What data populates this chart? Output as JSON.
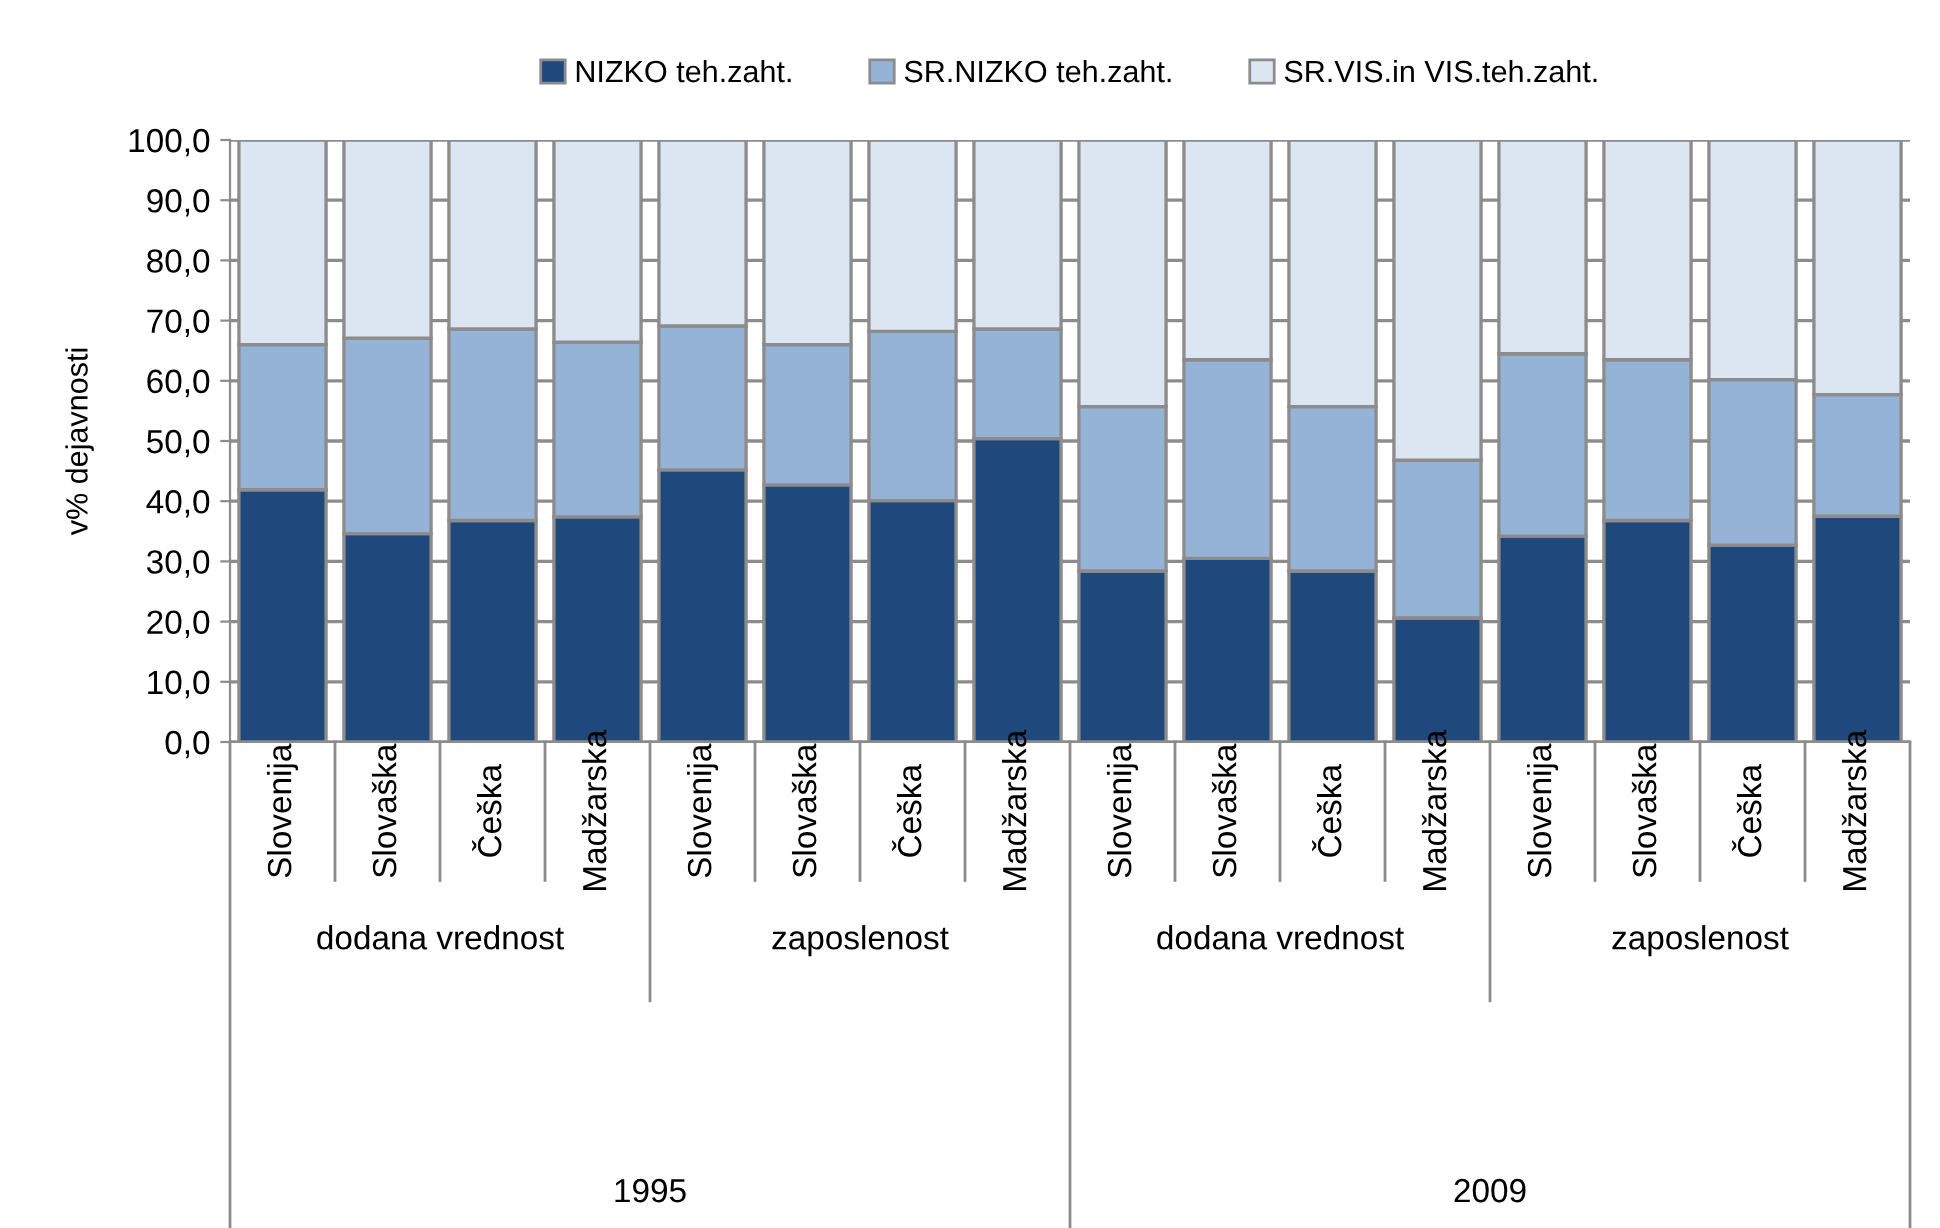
{
  "chart_data": {
    "type": "bar",
    "stacked": true,
    "ylabel": "v% dejavnosti",
    "categories": [
      "Slovenija",
      "Slovaška",
      "Češka",
      "Madžarska",
      "Slovenija",
      "Slovaška",
      "Češka",
      "Madžarska",
      "Slovenija",
      "Slovaška",
      "Češka",
      "Madžarska",
      "Slovenija",
      "Slovaška",
      "Češka",
      "Madžarska"
    ],
    "series": [
      {
        "name": "NIZKO teh.zaht.",
        "color": "#1f497d",
        "values": [
          41.9,
          34.6,
          36.8,
          37.4,
          45.2,
          42.7,
          40.1,
          50.4,
          28.4,
          30.5,
          28.4,
          20.6,
          34.2,
          36.8,
          32.7,
          37.5
        ]
      },
      {
        "name": "SR.NIZKO teh.zaht.",
        "color": "#95b3d7",
        "values": [
          24.1,
          32.5,
          31.8,
          29.0,
          23.9,
          23.3,
          28.1,
          18.2,
          27.3,
          33.0,
          27.3,
          26.2,
          30.3,
          26.7,
          27.5,
          20.2
        ]
      },
      {
        "name": "SR.VIS.in VIS.teh.zaht.",
        "color": "#dce6f2",
        "values": [
          34.0,
          32.9,
          31.4,
          33.6,
          30.9,
          34.0,
          31.8,
          31.4,
          44.3,
          36.5,
          44.3,
          53.2,
          35.5,
          36.5,
          39.8,
          42.3
        ]
      }
    ],
    "ylim": [
      0,
      100
    ],
    "yticks": [
      {
        "value": 0,
        "label": "0,0"
      },
      {
        "value": 10,
        "label": "10,0"
      },
      {
        "value": 20,
        "label": "20,0"
      },
      {
        "value": 30,
        "label": "30,0"
      },
      {
        "value": 40,
        "label": "40,0"
      },
      {
        "value": 50,
        "label": "50,0"
      },
      {
        "value": 60,
        "label": "60,0"
      },
      {
        "value": 70,
        "label": "70,0"
      },
      {
        "value": 80,
        "label": "80,0"
      },
      {
        "value": 90,
        "label": "90,0"
      },
      {
        "value": 100,
        "label": "100,0"
      }
    ],
    "grid": "y",
    "legend": "top",
    "annotations": [
      "dodana vrednost",
      "zaposlenost",
      "dodana vrednost",
      "zaposlenost",
      "1995",
      "2009"
    ]
  }
}
